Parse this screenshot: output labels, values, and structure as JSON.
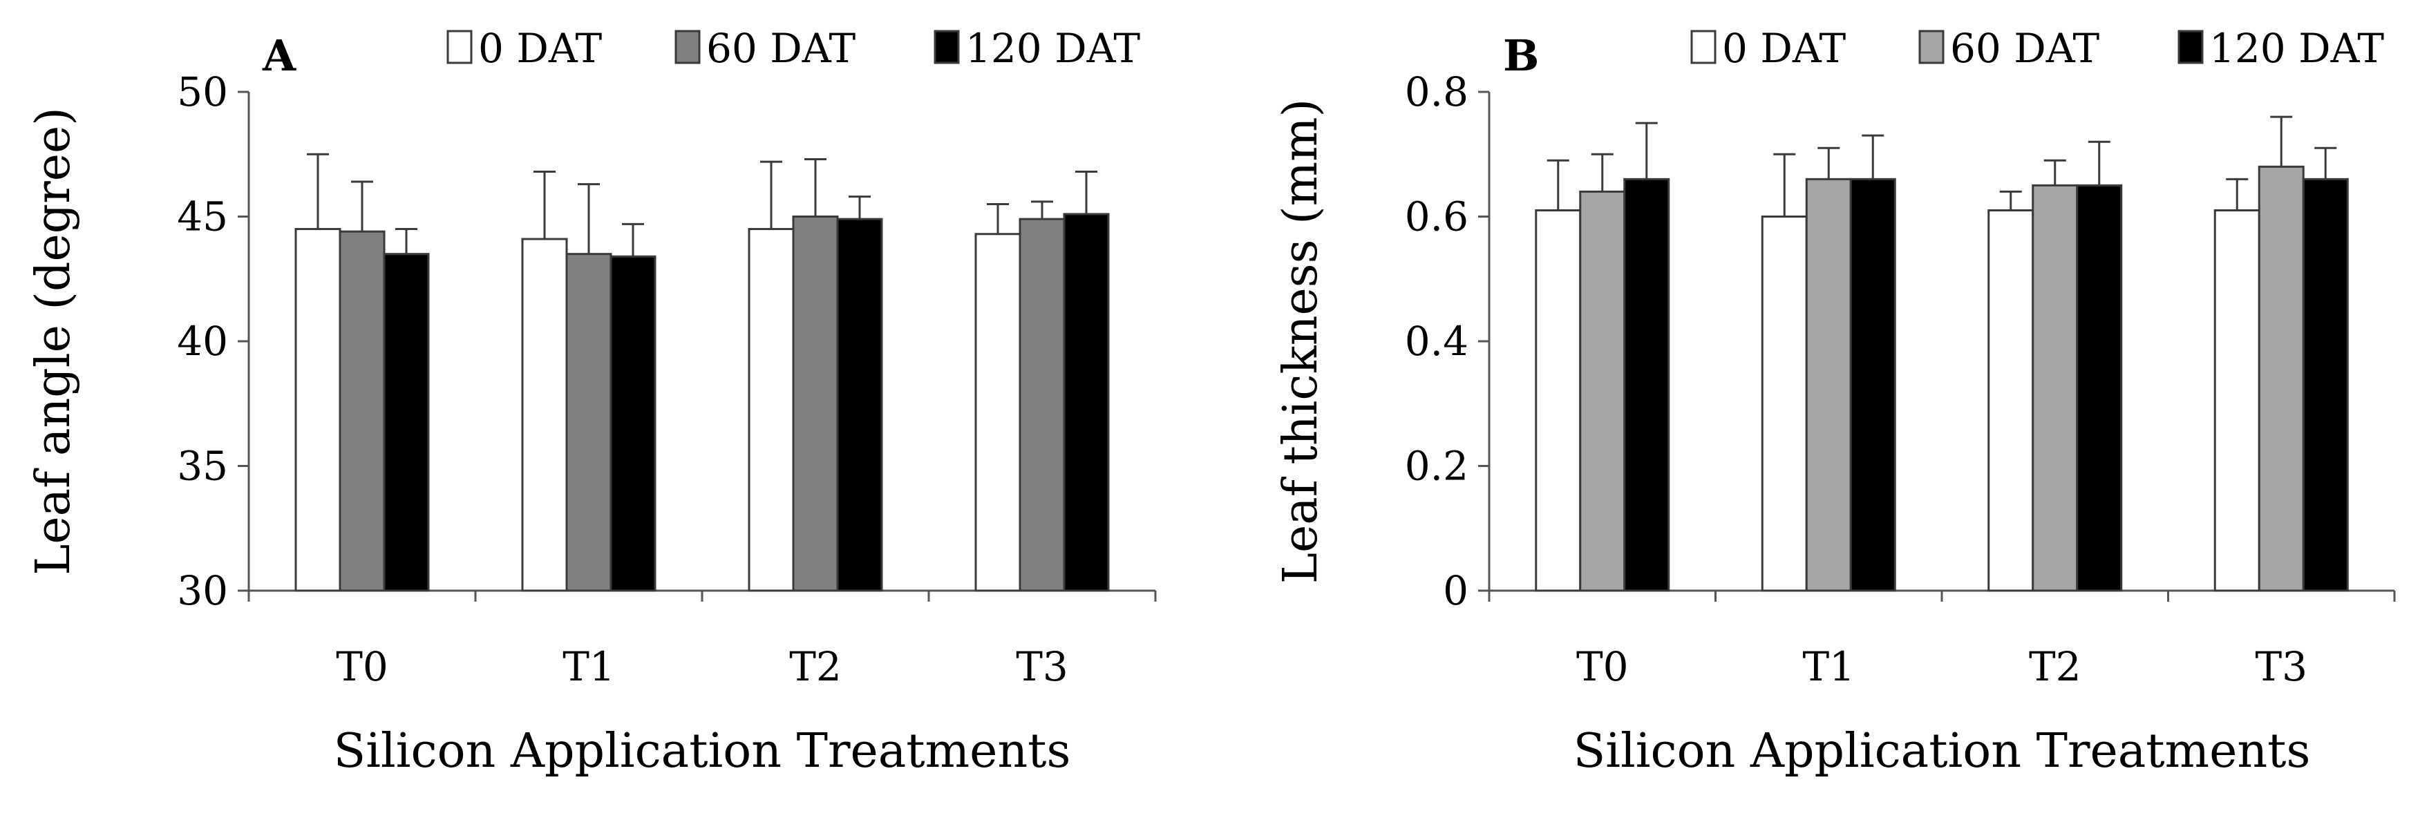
{
  "chart_data": [
    {
      "type": "bar",
      "panel_label": "A",
      "categories": [
        "T0",
        "T1",
        "T2",
        "T3"
      ],
      "category_labels": [
        "T0",
        "T1",
        "T2",
        "T3"
      ],
      "series": [
        {
          "name": "0 DAT",
          "values": [
            44.5,
            44.1,
            44.5,
            44.3
          ],
          "errors": [
            3.0,
            2.7,
            2.7,
            1.2
          ],
          "color": "#ffffff"
        },
        {
          "name": "60 DAT",
          "values": [
            44.4,
            43.5,
            45.0,
            44.9
          ],
          "errors": [
            2.0,
            2.8,
            2.3,
            0.7
          ],
          "color": "#808080"
        },
        {
          "name": "120 DAT",
          "values": [
            43.5,
            43.4,
            44.9,
            45.1
          ],
          "errors": [
            1.0,
            1.3,
            0.9,
            1.7
          ],
          "color": "#000000"
        }
      ],
      "ylim": [
        30,
        50
      ],
      "yticks": [
        30,
        35,
        40,
        45,
        50
      ],
      "ytick_labels": [
        "30",
        "35",
        "40",
        "45",
        "50"
      ],
      "ylabel": "Leaf angle (degree)",
      "xlabel": "Silicon Application Treatments",
      "grid": false,
      "legend_placement": "top"
    },
    {
      "type": "bar",
      "panel_label": "B",
      "categories": [
        "T0",
        "T1",
        "T2",
        "T3"
      ],
      "category_labels": [
        "T0",
        "T1",
        "T2",
        "T3"
      ],
      "series": [
        {
          "name": "0 DAT",
          "values": [
            0.61,
            0.6,
            0.61,
            0.61
          ],
          "errors": [
            0.08,
            0.1,
            0.03,
            0.05
          ],
          "color": "#ffffff"
        },
        {
          "name": "60 DAT",
          "values": [
            0.64,
            0.66,
            0.65,
            0.68
          ],
          "errors": [
            0.06,
            0.05,
            0.04,
            0.08
          ],
          "color": "#a6a6a6"
        },
        {
          "name": "120 DAT",
          "values": [
            0.66,
            0.66,
            0.65,
            0.66
          ],
          "errors": [
            0.09,
            0.07,
            0.07,
            0.05
          ],
          "color": "#000000"
        }
      ],
      "ylim": [
        0,
        0.8
      ],
      "yticks": [
        0,
        0.2,
        0.4,
        0.6,
        0.8
      ],
      "ytick_labels": [
        "0",
        "0.2",
        "0.4",
        "0.6",
        "0.8"
      ],
      "ylabel": "Leaf thickness (mm)",
      "xlabel": "Silicon Application Treatments",
      "grid": false,
      "legend_placement": "top"
    }
  ]
}
